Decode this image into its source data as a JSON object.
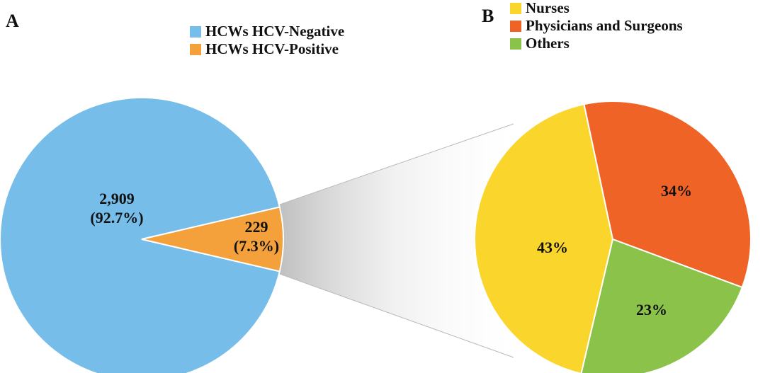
{
  "chart_data": [
    {
      "type": "pie",
      "panel_label": "A",
      "categories": [
        "HCWs HCV-Negative",
        "HCWs HCV-Positive"
      ],
      "values": [
        2909,
        229
      ],
      "value_labels": [
        "2,909",
        "229"
      ],
      "percent_labels": [
        "(92.7%)",
        "(7.3%)"
      ],
      "colors": [
        "#76bee9",
        "#f4a03b"
      ]
    },
    {
      "type": "pie",
      "panel_label": "B",
      "categories": [
        "Nurses",
        "Physicians and Surgeons",
        "Others"
      ],
      "values": [
        43,
        34,
        23
      ],
      "value_labels": [
        "43%",
        "34%",
        "23%"
      ],
      "colors": [
        "#fad52b",
        "#ef6326",
        "#8bc24a"
      ]
    }
  ]
}
